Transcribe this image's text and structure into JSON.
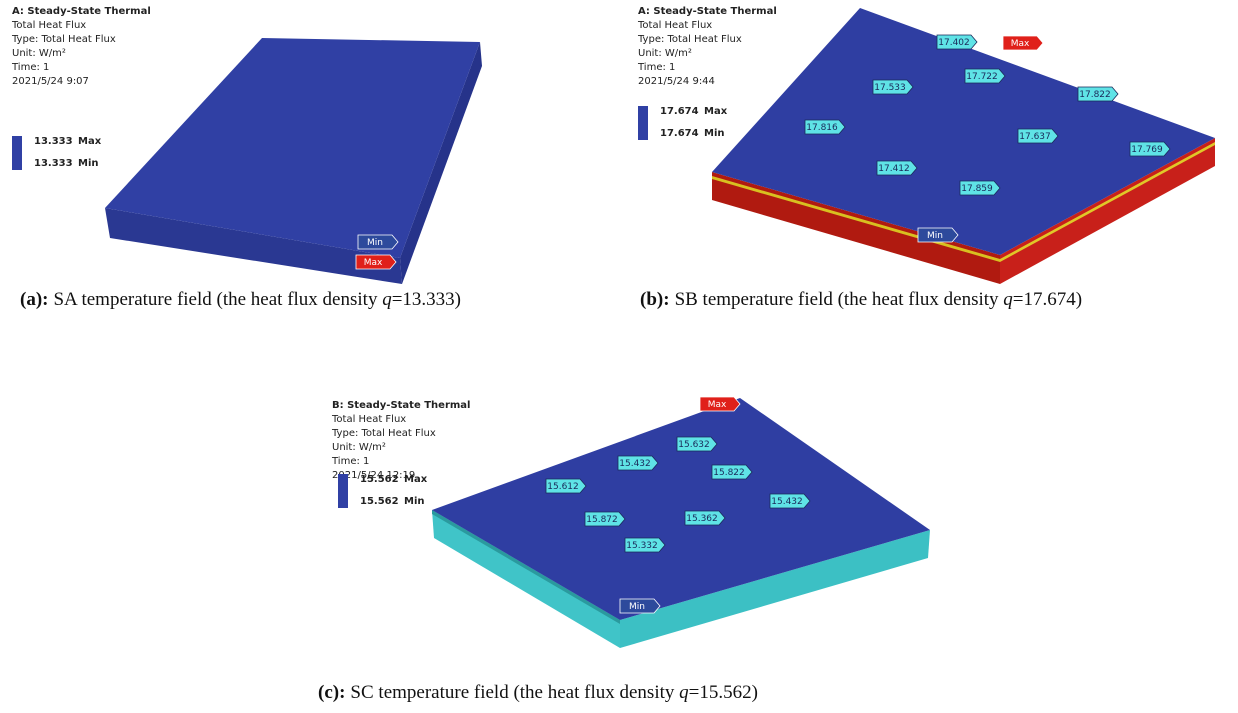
{
  "panels": [
    {
      "header": {
        "title": "A: Steady-State Thermal",
        "lines": [
          "Total Heat Flux",
          "Type: Total Heat Flux",
          "Unit: W/m²",
          "Time: 1",
          "2021/5/24 9:07"
        ]
      },
      "legend": {
        "max": {
          "value": "13.333",
          "label": "Max"
        },
        "min": {
          "value": "13.333",
          "label": "Min"
        }
      },
      "markers": {
        "min": "Min",
        "max": "Max"
      },
      "caption": {
        "label": "(a):",
        "text": "SA temperature field (the heat flux density ",
        "symbol": "q",
        "value": "=13.333)"
      }
    },
    {
      "header": {
        "title": "A: Steady-State Thermal",
        "lines": [
          "Total Heat Flux",
          "Type: Total Heat Flux",
          "Unit: W/m²",
          "Time: 1",
          "2021/5/24 9:44"
        ]
      },
      "legend": {
        "max": {
          "value": "17.674",
          "label": "Max"
        },
        "min": {
          "value": "17.674",
          "label": "Min"
        }
      },
      "markers": {
        "min": "Min",
        "max": "Max"
      },
      "probes": [
        "17.402",
        "17.722",
        "17.533",
        "17.822",
        "17.816",
        "17.637",
        "17.769",
        "17.412",
        "17.859"
      ],
      "caption": {
        "label": "(b):",
        "text": "SB temperature field (the heat flux density ",
        "symbol": "q",
        "value": "=17.674)"
      }
    },
    {
      "header": {
        "title": "B: Steady-State Thermal",
        "lines": [
          "Total Heat Flux",
          "Type: Total Heat Flux",
          "Unit: W/m²",
          "Time: 1",
          "2021/5/24 12:19"
        ]
      },
      "legend": {
        "max": {
          "value": "15.562",
          "label": "Max"
        },
        "min": {
          "value": "15.562",
          "label": "Min"
        }
      },
      "markers": {
        "min": "Min",
        "max": "Max"
      },
      "probes": [
        "15.632",
        "15.432",
        "15.822",
        "15.612",
        "15.432",
        "15.872",
        "15.362",
        "15.332"
      ],
      "caption": {
        "label": "(c):",
        "text": "SC temperature field (the heat flux density ",
        "symbol": "q",
        "value": "=15.562)"
      }
    }
  ]
}
